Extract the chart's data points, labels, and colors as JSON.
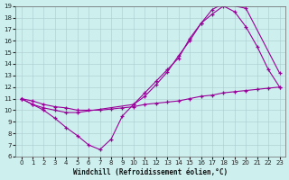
{
  "xlabel": "Windchill (Refroidissement éolien,°C)",
  "bg_color": "#cdf0ee",
  "grid_color": "#aacccc",
  "line_color": "#990099",
  "xlim_min": -0.5,
  "xlim_max": 23.5,
  "ylim_min": 6,
  "ylim_max": 19,
  "xticks": [
    0,
    1,
    2,
    3,
    4,
    5,
    6,
    7,
    8,
    9,
    10,
    11,
    12,
    13,
    14,
    15,
    16,
    17,
    18,
    19,
    20,
    21,
    22,
    23
  ],
  "yticks": [
    6,
    7,
    8,
    9,
    10,
    11,
    12,
    13,
    14,
    15,
    16,
    17,
    18,
    19
  ],
  "curve1_x": [
    0,
    1,
    2,
    3,
    4,
    5,
    6,
    7,
    8,
    9,
    10,
    11,
    12,
    13,
    14,
    15,
    16,
    17,
    18,
    20,
    23
  ],
  "curve1_y": [
    11,
    10.5,
    10,
    9.3,
    8.5,
    7.8,
    7.0,
    6.6,
    7.5,
    9.5,
    10.5,
    11.5,
    12.5,
    13.5,
    14.5,
    16.2,
    17.5,
    18.7,
    19.2,
    18.8,
    13.2
  ],
  "curve2_x": [
    0,
    1,
    2,
    3,
    4,
    5,
    10,
    11,
    12,
    13,
    14,
    15,
    16,
    17,
    18,
    19,
    20,
    21,
    22,
    23
  ],
  "curve2_y": [
    11,
    10.5,
    10.2,
    10.0,
    9.8,
    9.8,
    10.5,
    11.2,
    12.2,
    13.3,
    14.7,
    16.0,
    17.5,
    18.3,
    19.0,
    18.5,
    17.2,
    15.5,
    13.5,
    12.0
  ],
  "curve3_x": [
    0,
    1,
    2,
    3,
    4,
    5,
    6,
    7,
    8,
    9,
    10,
    11,
    12,
    13,
    14,
    15,
    16,
    17,
    18,
    19,
    20,
    21,
    22,
    23
  ],
  "curve3_y": [
    11,
    10.8,
    10.5,
    10.3,
    10.2,
    10.0,
    10.0,
    10.0,
    10.1,
    10.2,
    10.3,
    10.5,
    10.6,
    10.7,
    10.8,
    11.0,
    11.2,
    11.3,
    11.5,
    11.6,
    11.7,
    11.8,
    11.9,
    12.0
  ]
}
